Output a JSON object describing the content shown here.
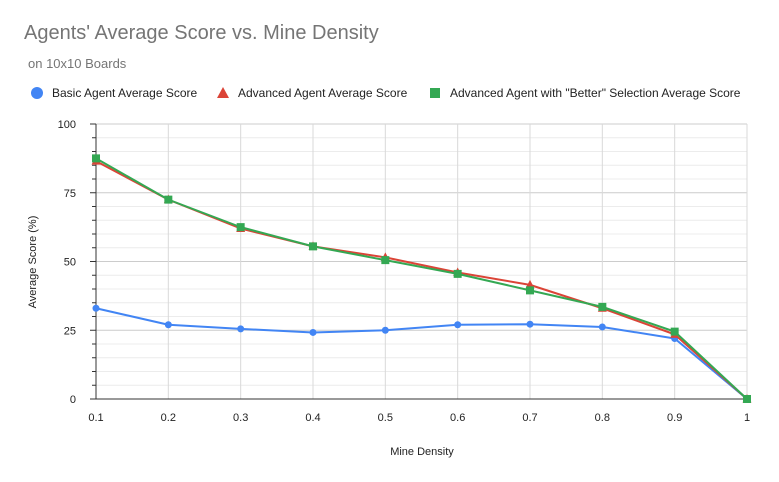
{
  "chart_data": {
    "type": "line",
    "title": "Agents' Average Score vs. Mine Density",
    "subtitle": "on 10x10 Boards",
    "xlabel": "Mine Density",
    "ylabel": "Average Score (%)",
    "x": [
      "0.1",
      "0.2",
      "0.3",
      "0.4",
      "0.5",
      "0.6",
      "0.7",
      "0.8",
      "0.9",
      "1"
    ],
    "ylim": [
      0,
      100
    ],
    "yticks": [
      "0",
      "25",
      "50",
      "75",
      "100"
    ],
    "grid": true,
    "legend_position": "top",
    "series": [
      {
        "name": "Basic Agent Average Score",
        "color": "#4285f4",
        "marker": "circle",
        "values": [
          33,
          27,
          25.5,
          24.2,
          25,
          27,
          27.2,
          26.2,
          22,
          0
        ]
      },
      {
        "name": "Advanced Agent Average Score",
        "color": "#db4437",
        "marker": "triangle",
        "values": [
          86.5,
          72.5,
          62,
          55.5,
          51.5,
          46,
          41.5,
          33,
          23.5,
          0
        ]
      },
      {
        "name": "Advanced Agent with \"Better\" Selection Average Score",
        "color": "#34a853",
        "marker": "square",
        "values": [
          87.5,
          72.5,
          62.5,
          55.5,
          50.5,
          45.5,
          39.5,
          33.5,
          24.5,
          0
        ]
      }
    ]
  }
}
